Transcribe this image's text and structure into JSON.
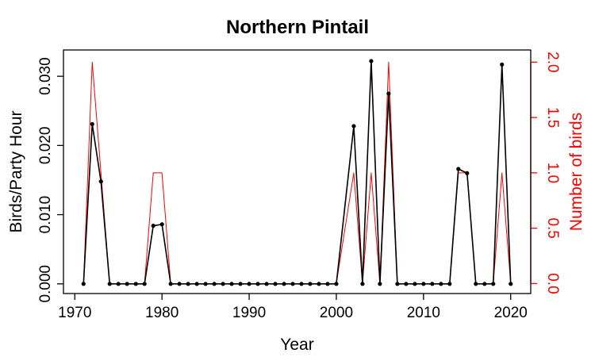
{
  "chart_data": {
    "type": "line",
    "title": "Northern Pintail",
    "xlabel": "Year",
    "ylabel": "Birds/Party Hour",
    "y2label": "Number of birds",
    "xlim": [
      1968.7,
      2022.3
    ],
    "ylim": [
      -0.0014,
      0.0338
    ],
    "y2lim": [
      -0.09,
      2.11
    ],
    "xticks": [
      1970,
      1980,
      1990,
      2000,
      2010,
      2020
    ],
    "yticks": [
      0.0,
      0.01,
      0.02,
      0.03
    ],
    "ytick_labels": [
      "0.000",
      "0.010",
      "0.020",
      "0.030"
    ],
    "y2ticks": [
      0.0,
      0.5,
      1.0,
      1.5,
      2.0
    ],
    "y2tick_labels": [
      "0.0",
      "0.5",
      "1.0",
      "1.5",
      "2.0"
    ],
    "x": [
      1971,
      1972,
      1973,
      1974,
      1975,
      1976,
      1977,
      1978,
      1979,
      1980,
      1981,
      1982,
      1983,
      1984,
      1985,
      1986,
      1987,
      1988,
      1989,
      1990,
      1991,
      1992,
      1993,
      1994,
      1995,
      1996,
      1997,
      1998,
      1999,
      2000,
      2002,
      2003,
      2004,
      2005,
      2006,
      2007,
      2008,
      2009,
      2010,
      2011,
      2012,
      2013,
      2014,
      2015,
      2016,
      2017,
      2018,
      2019,
      2020
    ],
    "series": [
      {
        "axis": "left",
        "color": "#000000",
        "markers": true,
        "values": [
          0,
          0.0231,
          0.0148,
          0,
          0,
          0,
          0,
          0,
          0.0084,
          0.0086,
          0,
          0,
          0,
          0,
          0,
          0,
          0,
          0,
          0,
          0,
          0,
          0,
          0,
          0,
          0,
          0,
          0,
          0,
          0,
          0,
          0.0228,
          0,
          0.0322,
          0,
          0.0275,
          0,
          0,
          0,
          0,
          0,
          0,
          0,
          0.0166,
          0.016,
          0,
          0,
          0,
          0.0317,
          0
        ]
      },
      {
        "axis": "right",
        "color": "#ff0000",
        "markers": false,
        "values": [
          0,
          2,
          1,
          0,
          0,
          0,
          0,
          0,
          1,
          1,
          0,
          0,
          0,
          0,
          0,
          0,
          0,
          0,
          0,
          0,
          0,
          0,
          0,
          0,
          0,
          0,
          0,
          0,
          0,
          0,
          1,
          0,
          1,
          0,
          2,
          0,
          0,
          0,
          0,
          0,
          0,
          0,
          1,
          1,
          0,
          0,
          0,
          1,
          0
        ]
      }
    ]
  }
}
